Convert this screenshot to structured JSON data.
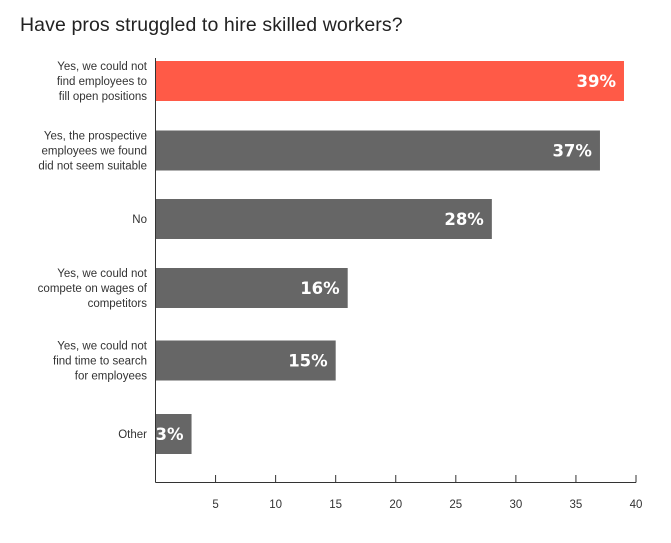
{
  "chart_data": {
    "type": "bar",
    "orientation": "horizontal",
    "title": "Have pros struggled to hire skilled workers?",
    "categories": [
      [
        "Yes, we could not",
        "find employees to",
        "fill open positions"
      ],
      [
        "Yes, the prospective",
        "employees we found",
        "did not seem suitable"
      ],
      [
        "No"
      ],
      [
        "Yes, we could not",
        "compete on wages of",
        "competitors"
      ],
      [
        "Yes, we could not",
        "find time to search",
        "for employees"
      ],
      [
        "Other"
      ]
    ],
    "values": [
      39,
      37,
      28,
      16,
      15,
      3
    ],
    "value_labels": [
      "39%",
      "37%",
      "28%",
      "16%",
      "15%",
      "3%"
    ],
    "highlight_index": 0,
    "colors": {
      "highlight": "#ff5a47",
      "default": "#666666",
      "axis": "#333333"
    },
    "xlim": [
      0,
      40
    ],
    "x_ticks": [
      5,
      10,
      15,
      20,
      25,
      30,
      35,
      40
    ],
    "x_tick_labels": [
      "5",
      "10",
      "15",
      "20",
      "25",
      "30",
      "35",
      "40"
    ],
    "grid": false
  }
}
